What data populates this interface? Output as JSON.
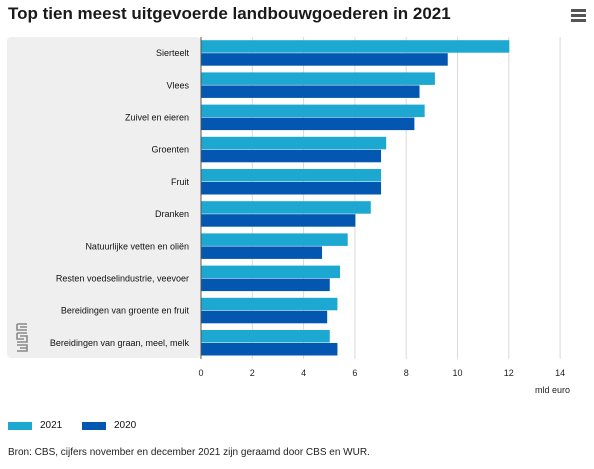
{
  "header": {
    "title": "Top tien meest uitgevoerde landbouwgoederen in 2021",
    "menu_icon": "hamburger-menu-icon"
  },
  "logo": {
    "icon": "cbs-logo-icon"
  },
  "colors": {
    "series_2021": "#1ca8d0",
    "series_2020": "#0457b0",
    "plot_band": "#efefef",
    "grid": "#d9d9d9"
  },
  "chart_data": {
    "type": "bar",
    "orientation": "horizontal",
    "title": "Top tien meest uitgevoerde landbouwgoederen in 2021",
    "categories": [
      "Sierteelt",
      "Vlees",
      "Zuivel en eieren",
      "Groenten",
      "Fruit",
      "Dranken",
      "Natuurlijke vetten en oliën",
      "Resten voedselindustrie, veevoer",
      "Bereidingen van groente en fruit",
      "Bereidingen van graan, meel, melk"
    ],
    "series": [
      {
        "name": "2021",
        "color": "#1ca8d0",
        "values": [
          12.0,
          9.1,
          8.7,
          7.2,
          7.0,
          6.6,
          5.7,
          5.4,
          5.3,
          5.0
        ]
      },
      {
        "name": "2020",
        "color": "#0457b0",
        "values": [
          9.6,
          8.5,
          8.3,
          7.0,
          7.0,
          6.0,
          4.7,
          5.0,
          4.9,
          5.3
        ]
      }
    ],
    "xlabel": "mld euro",
    "xlim": [
      0,
      14
    ],
    "xticks": [
      "0",
      "2",
      "4",
      "6",
      "8",
      "10",
      "12",
      "14"
    ],
    "grid": true,
    "legend_position": "bottom-left"
  },
  "source": "Bron: CBS, cijfers november en december 2021 zijn geraamd door CBS en WUR."
}
